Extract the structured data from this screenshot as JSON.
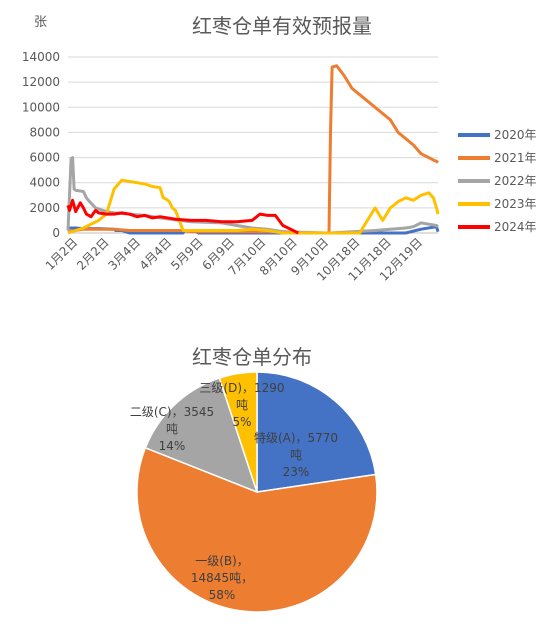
{
  "chart_data": [
    {
      "type": "line",
      "title": "红枣仓单有效预报量",
      "ylabel": "张",
      "ylim": [
        0,
        14000
      ],
      "yticks": [
        "0",
        "2000",
        "4000",
        "6000",
        "8000",
        "10000",
        "12000",
        "14000"
      ],
      "x_ticks": [
        "1月2日",
        "2月2日",
        "3月4日",
        "4月4日",
        "5月9日",
        "6月9日",
        "7月10日",
        "8月10日",
        "9月10日",
        "10月18日",
        "11月18日",
        "12月19日"
      ],
      "grid": true,
      "legend_position": "right",
      "series": [
        {
          "name": "2020年",
          "color": "#4472C4",
          "x": [
            0,
            5,
            10,
            20,
            30,
            31,
            35,
            40,
            60,
            61,
            70,
            75,
            76,
            82,
            85,
            86,
            88,
            90,
            95,
            100,
            125,
            126,
            140,
            150,
            180,
            181,
            200,
            220,
            230,
            240,
            241
          ],
          "y": [
            400,
            400,
            350,
            350,
            300,
            200,
            200,
            0,
            0,
            0,
            0,
            0,
            200,
            200,
            0,
            0,
            0,
            0,
            0,
            0,
            0,
            0,
            0,
            0,
            0,
            0,
            0,
            0,
            300,
            500,
            100
          ]
        },
        {
          "name": "2021年",
          "color": "#ED7D31",
          "x": [
            0,
            10,
            30,
            40,
            60,
            75,
            80,
            90,
            100,
            120,
            140,
            160,
            170,
            171,
            172,
            175,
            180,
            185,
            190,
            200,
            210,
            215,
            220,
            225,
            230,
            235,
            238,
            240,
            241
          ],
          "y": [
            100,
            300,
            300,
            200,
            200,
            200,
            100,
            100,
            100,
            100,
            100,
            0,
            0,
            8000,
            13200,
            13300,
            12500,
            11500,
            11000,
            10000,
            9000,
            8000,
            7500,
            7000,
            6300,
            6000,
            5800,
            5700,
            5600
          ]
        },
        {
          "name": "2022年",
          "color": "#A5A5A5",
          "x": [
            0,
            2,
            3,
            4,
            5,
            10,
            12,
            14,
            18,
            25,
            30,
            40,
            50,
            60,
            80,
            100,
            110,
            120,
            130,
            140,
            170,
            200,
            210,
            220,
            225,
            230,
            235,
            240,
            241
          ],
          "y": [
            200,
            5900,
            6000,
            3500,
            3400,
            3300,
            2800,
            2500,
            2000,
            1700,
            1600,
            1500,
            1400,
            1200,
            900,
            800,
            600,
            400,
            300,
            100,
            0,
            200,
            300,
            400,
            500,
            800,
            700,
            600,
            500
          ]
        },
        {
          "name": "2023年",
          "color": "#FFC000",
          "x": [
            0,
            10,
            20,
            25,
            30,
            35,
            40,
            45,
            50,
            55,
            60,
            62,
            64,
            66,
            68,
            70,
            75,
            90,
            110,
            120,
            130,
            140,
            160,
            190,
            195,
            200,
            205,
            210,
            215,
            220,
            225,
            230,
            235,
            238,
            240,
            241
          ],
          "y": [
            0,
            400,
            1000,
            1500,
            3500,
            4200,
            4100,
            4000,
            3900,
            3700,
            3600,
            2800,
            2700,
            2500,
            2000,
            1800,
            200,
            200,
            200,
            300,
            200,
            0,
            0,
            0,
            1000,
            2000,
            1000,
            2000,
            2500,
            2800,
            2600,
            3000,
            3200,
            2800,
            2000,
            1500
          ]
        },
        {
          "name": "2024年",
          "color": "#FF0000",
          "x": [
            0,
            1,
            3,
            5,
            8,
            10,
            12,
            15,
            18,
            20,
            25,
            30,
            35,
            40,
            45,
            50,
            55,
            60,
            70,
            80,
            90,
            100,
            110,
            120,
            125,
            130,
            135,
            140,
            145,
            150
          ],
          "y": [
            2200,
            1800,
            2600,
            1700,
            2400,
            2000,
            1500,
            1300,
            1800,
            1600,
            1500,
            1500,
            1600,
            1500,
            1300,
            1400,
            1200,
            1300,
            1100,
            1000,
            1000,
            900,
            900,
            1000,
            1500,
            1400,
            1400,
            600,
            300,
            0
          ]
        }
      ]
    },
    {
      "type": "pie",
      "title": "红枣仓单分布",
      "slices": [
        {
          "name": "特级(A)",
          "value": 5770,
          "unit": "吨",
          "percent": "23%",
          "color": "#4472C4",
          "label_lines": [
            "特级(A)，5770",
            "吨",
            "23%"
          ]
        },
        {
          "name": "一级(B)",
          "value": 14845,
          "unit": "吨",
          "percent": "58%",
          "color": "#ED7D31",
          "label_lines": [
            "一级(B)，",
            "14845吨，",
            "58%"
          ]
        },
        {
          "name": "二级(C)",
          "value": 3545,
          "unit": "吨",
          "percent": "14%",
          "color": "#A5A5A5",
          "label_lines": [
            "二级(C)，3545",
            "吨",
            "14%"
          ]
        },
        {
          "name": "三级(D)",
          "value": 1290,
          "unit": "吨",
          "percent": "5%",
          "color": "#FFC000",
          "label_lines": [
            "三级(D)，1290",
            "吨",
            "5%"
          ]
        }
      ]
    }
  ]
}
